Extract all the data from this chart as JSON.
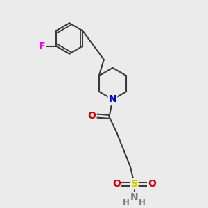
{
  "bg_color": "#ebebeb",
  "bond_color": "#3a3a3a",
  "bond_width": 1.5,
  "atom_colors": {
    "F": "#ee00ee",
    "N_pip": "#0000cc",
    "O": "#cc0000",
    "S": "#cccc00",
    "N_sul": "#7a7a7a",
    "H": "#7a7a7a"
  },
  "font_size": 10,
  "font_size_H": 8.5
}
